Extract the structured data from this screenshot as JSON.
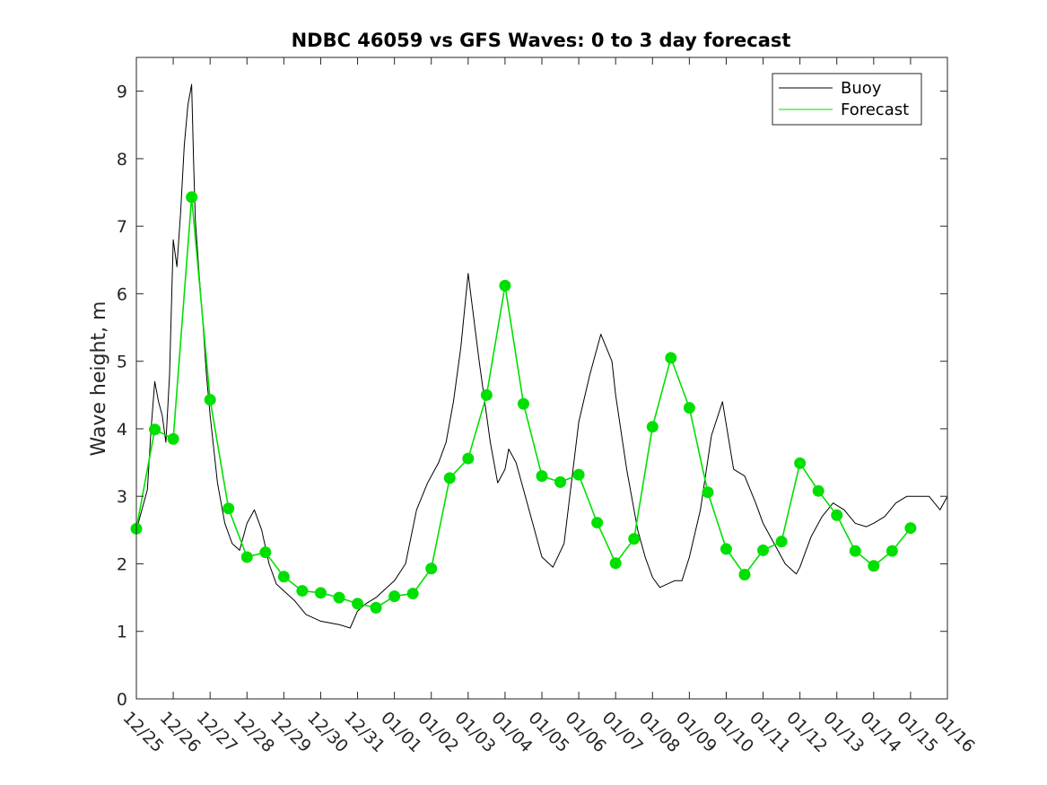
{
  "chart_data": {
    "type": "line",
    "title": "NDBC 46059 vs GFS Waves: 0 to 3 day forecast",
    "xlabel": "",
    "ylabel": "Wave height, m",
    "xlim": [
      "12/25",
      "01/16"
    ],
    "ylim": [
      0,
      9.5
    ],
    "y_ticks": [
      0,
      1,
      2,
      3,
      4,
      5,
      6,
      7,
      8,
      9
    ],
    "x_ticks": [
      "12/25",
      "12/26",
      "12/27",
      "12/28",
      "12/29",
      "12/30",
      "12/31",
      "01/01",
      "01/02",
      "01/03",
      "01/04",
      "01/05",
      "01/06",
      "01/07",
      "01/08",
      "01/09",
      "01/10",
      "01/11",
      "01/12",
      "01/13",
      "01/14",
      "01/15",
      "01/16"
    ],
    "grid": false,
    "legend": {
      "placement": "top-right",
      "entries": [
        {
          "label": "Buoy",
          "color": "#000000"
        },
        {
          "label": "Forecast",
          "color": "#00e000"
        }
      ]
    },
    "series": [
      {
        "name": "Buoy",
        "color": "#000000",
        "x": [
          0,
          0.1,
          0.2,
          0.3,
          0.4,
          0.5,
          0.6,
          0.7,
          0.8,
          0.9,
          1.0,
          1.1,
          1.2,
          1.3,
          1.4,
          1.5,
          1.55,
          1.6,
          1.7,
          1.8,
          1.9,
          2.0,
          2.2,
          2.4,
          2.6,
          2.8,
          3.0,
          3.2,
          3.4,
          3.6,
          3.8,
          4.0,
          4.3,
          4.6,
          5.0,
          5.5,
          5.8,
          6.0,
          6.2,
          6.5,
          6.8,
          7.0,
          7.3,
          7.6,
          7.9,
          8.2,
          8.4,
          8.6,
          8.8,
          9.0,
          9.3,
          9.6,
          9.8,
          10.0,
          10.1,
          10.3,
          10.5,
          10.8,
          11.0,
          11.3,
          11.6,
          11.8,
          12.0,
          12.3,
          12.6,
          12.9,
          13.0,
          13.3,
          13.6,
          13.8,
          14.0,
          14.2,
          14.4,
          14.6,
          14.8,
          15.0,
          15.3,
          15.6,
          15.9,
          16.2,
          16.5,
          16.8,
          17.0,
          17.3,
          17.6,
          17.9,
          18.0,
          18.1,
          18.3,
          18.6,
          18.9,
          19.2,
          19.5,
          19.8,
          20.0,
          20.3,
          20.6,
          20.9,
          21.2,
          21.5,
          21.8,
          22.0
        ],
        "y": [
          2.5,
          2.7,
          2.9,
          3.1,
          4.0,
          4.7,
          4.4,
          4.2,
          3.8,
          4.8,
          6.8,
          6.4,
          7.2,
          8.2,
          8.8,
          9.1,
          8.0,
          7.1,
          6.3,
          5.6,
          4.8,
          4.2,
          3.2,
          2.6,
          2.3,
          2.2,
          2.6,
          2.8,
          2.5,
          2.0,
          1.7,
          1.6,
          1.45,
          1.25,
          1.15,
          1.1,
          1.05,
          1.3,
          1.4,
          1.5,
          1.65,
          1.75,
          2.0,
          2.8,
          3.2,
          3.5,
          3.8,
          4.4,
          5.2,
          6.3,
          5.0,
          3.8,
          3.2,
          3.4,
          3.7,
          3.5,
          3.1,
          2.5,
          2.1,
          1.95,
          2.3,
          3.2,
          4.1,
          4.8,
          5.4,
          5.0,
          4.5,
          3.4,
          2.5,
          2.1,
          1.8,
          1.65,
          1.7,
          1.75,
          1.75,
          2.1,
          2.8,
          3.9,
          4.4,
          3.4,
          3.3,
          2.9,
          2.6,
          2.3,
          2.0,
          1.85,
          1.95,
          2.1,
          2.4,
          2.7,
          2.9,
          2.8,
          2.6,
          2.55,
          2.6,
          2.7,
          2.9,
          3.0,
          3.0,
          3.0,
          2.8,
          3.0
        ]
      },
      {
        "name": "Forecast",
        "color": "#00e000",
        "x": [
          0,
          0.5,
          1.0,
          1.5,
          2.0,
          2.5,
          3.0,
          3.5,
          4.0,
          4.5,
          5.0,
          5.5,
          6.0,
          6.5,
          7.0,
          7.5,
          8.0,
          8.5,
          9.0,
          9.5,
          10.0,
          10.5,
          11.0,
          11.5,
          12.0,
          12.5,
          13.0,
          13.5,
          14.0,
          14.5,
          15.0,
          15.5,
          16.0,
          16.5,
          17.0,
          17.5,
          18.0,
          18.5,
          19.0,
          19.5,
          20.0,
          20.5,
          21.0
        ],
        "y": [
          2.52,
          3.99,
          3.85,
          7.43,
          4.43,
          2.82,
          2.1,
          2.17,
          1.81,
          1.6,
          1.57,
          1.5,
          1.41,
          1.35,
          1.52,
          1.56,
          1.93,
          3.27,
          3.56,
          4.5,
          6.12,
          4.37,
          3.3,
          3.21,
          3.32,
          2.61,
          2.01,
          2.37,
          4.03,
          5.05,
          4.31,
          3.06,
          2.22,
          1.84,
          2.2,
          2.33,
          3.49,
          3.08,
          2.72,
          2.19,
          1.97,
          2.19,
          2.53
        ]
      }
    ]
  }
}
